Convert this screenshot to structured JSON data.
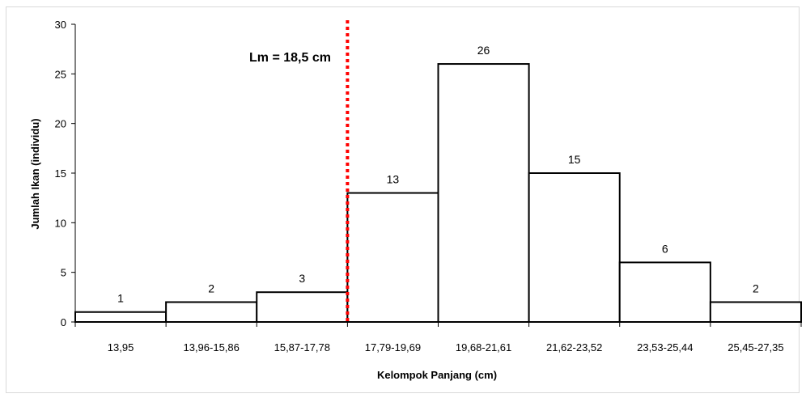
{
  "chart_data": {
    "type": "bar",
    "categories": [
      "13,95",
      "13,96-15,86",
      "15,87-17,78",
      "17,79-19,69",
      "19,68-21,61",
      "21,62-23,52",
      "23,53-25,44",
      "25,45-27,35"
    ],
    "values": [
      1,
      2,
      3,
      13,
      26,
      15,
      6,
      2
    ],
    "data_labels": [
      "1",
      "2",
      "3",
      "13",
      "26",
      "15",
      "6",
      "2"
    ],
    "xlabel": "Kelompok Panjang (cm)",
    "ylabel": "Jumlah Ikan (individu)",
    "ylim": [
      0,
      30
    ],
    "yticks": [
      "0",
      "5",
      "10",
      "15",
      "20",
      "25",
      "30"
    ],
    "grid": false,
    "legend": "none",
    "bar_fill": "#ffffff",
    "bar_stroke": "#000000",
    "annotation": {
      "text": "Lm = 18,5 cm",
      "line_style": "dotted",
      "line_color": "#ff0000",
      "position_between_categories": "15,87-17,78|17,79-19,69"
    }
  }
}
